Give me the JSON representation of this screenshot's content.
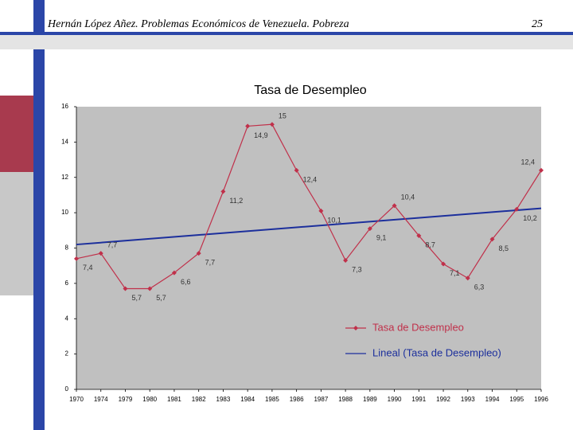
{
  "header": {
    "title": "Hernán López Añez. Problemas Económicos de Venezuela. Pobreza",
    "page": "25"
  },
  "chart_data": {
    "type": "line",
    "title": "Tasa de Desempleo",
    "categories": [
      "1970",
      "1974",
      "1979",
      "1980",
      "1981",
      "1982",
      "1983",
      "1984",
      "1985",
      "1986",
      "1987",
      "1988",
      "1989",
      "1990",
      "1991",
      "1992",
      "1993",
      "1994",
      "1995",
      "1996"
    ],
    "series": [
      {
        "name": "Tasa de Desempleo",
        "color": "#c0304a",
        "values": [
          7.4,
          7.7,
          5.7,
          5.7,
          6.6,
          7.7,
          11.2,
          14.9,
          15,
          12.4,
          10.1,
          7.3,
          9.1,
          10.4,
          8.7,
          7.1,
          6.3,
          8.5,
          10.2,
          12.4
        ],
        "value_labels": [
          "7,4",
          "7,7",
          "5,7",
          "5,7",
          "6,6",
          "7,7",
          "11,2",
          "14,9",
          "15",
          "12,4",
          "10,1",
          "7,3",
          "9,1",
          "10,4",
          "8,7",
          "7,1",
          "6,3",
          "8,5",
          "10,2",
          "12,4"
        ]
      }
    ],
    "trendline": {
      "name": "Lineal (Tasa de Desempleo)",
      "color": "#1c2f9c",
      "start": 8.2,
      "end": 10.25
    },
    "ylim": [
      0,
      16
    ],
    "yticks": [
      0,
      2,
      4,
      6,
      8,
      10,
      12,
      14,
      16
    ],
    "plot_background": "#c0c0c0"
  }
}
